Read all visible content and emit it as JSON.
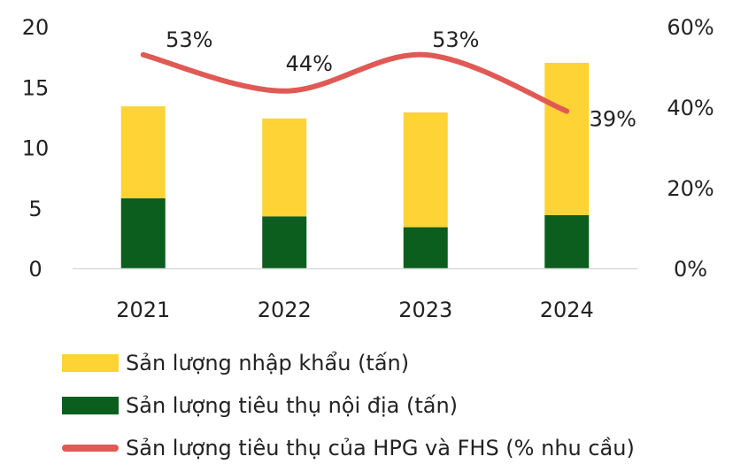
{
  "chart_data": {
    "type": "bar",
    "stacked": true,
    "categories": [
      "2021",
      "2022",
      "2023",
      "2024"
    ],
    "series": [
      {
        "name": "Sản lượng tiêu thụ nội địa (tấn)",
        "type": "bar",
        "axis": "left",
        "color": "#0b5e1e",
        "values": [
          5.8,
          4.3,
          3.4,
          4.4
        ]
      },
      {
        "name": "Sản lượng nhập khẩu (tấn)",
        "type": "bar",
        "axis": "left",
        "color": "#fdd335",
        "values": [
          7.6,
          8.1,
          9.5,
          12.6
        ]
      },
      {
        "name": "Sản lượng tiêu thụ của HPG và FHS (% nhu cầu)",
        "type": "line",
        "axis": "right",
        "color": "#e05a55",
        "values": [
          53,
          44,
          53,
          39
        ],
        "labels": [
          "53%",
          "44%",
          "53%",
          "39%"
        ]
      }
    ],
    "y_left": {
      "ticks": [
        "0",
        "5",
        "10",
        "15",
        "20"
      ],
      "ylim": [
        0,
        20
      ]
    },
    "y_right": {
      "ticks": [
        "0%",
        "20%",
        "40%",
        "60%"
      ],
      "ylim": [
        0,
        60
      ]
    },
    "grid": false,
    "legend_position": "bottom-left"
  }
}
